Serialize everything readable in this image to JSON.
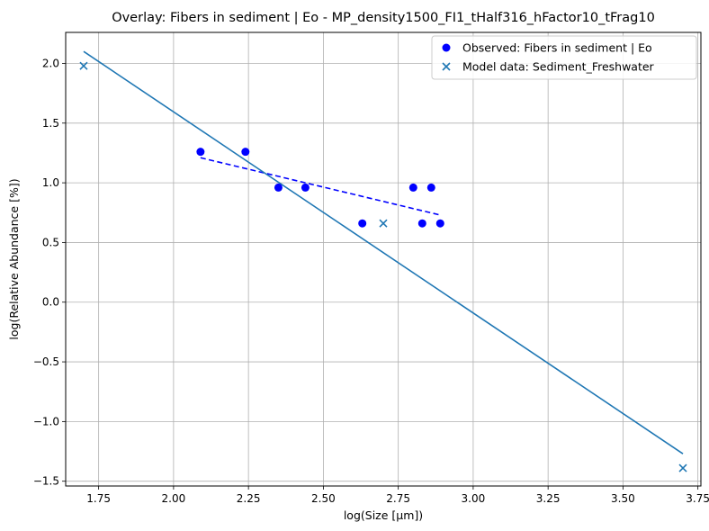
{
  "chart_data": {
    "type": "scatter",
    "title": "Overlay: Fibers in sediment | Eo - MP_density1500_FI1_tHalf316_hFactor10_tFrag10",
    "xlabel": "log(Size [µm])",
    "ylabel": "log(Relative Abundance [%])",
    "xlim": [
      1.64,
      3.76
    ],
    "ylim": [
      -1.54,
      2.26
    ],
    "xticks": [
      1.75,
      2.0,
      2.25,
      2.5,
      2.75,
      3.0,
      3.25,
      3.5,
      3.75
    ],
    "xtick_labels": [
      "1.75",
      "2.00",
      "2.25",
      "2.50",
      "2.75",
      "3.00",
      "3.25",
      "3.50",
      "3.75"
    ],
    "yticks": [
      -1.5,
      -1.0,
      -0.5,
      0.0,
      0.5,
      1.0,
      1.5,
      2.0
    ],
    "ytick_labels": [
      "−1.5",
      "−1.0",
      "−0.5",
      "0.0",
      "0.5",
      "1.0",
      "1.5",
      "2.0"
    ],
    "grid": true,
    "legend_position": "top-right",
    "series": [
      {
        "name": "Observed: Fibers in sediment | Eo",
        "kind": "scatter-circle",
        "color": "#0000ff",
        "points": [
          [
            2.09,
            1.26
          ],
          [
            2.24,
            1.26
          ],
          [
            2.35,
            0.96
          ],
          [
            2.44,
            0.96
          ],
          [
            2.63,
            0.66
          ],
          [
            2.8,
            0.96
          ],
          [
            2.83,
            0.66
          ],
          [
            2.86,
            0.96
          ],
          [
            2.89,
            0.66
          ]
        ]
      },
      {
        "name": "Model data: Sediment_Freshwater",
        "kind": "scatter-x",
        "color": "#1f77b4",
        "points": [
          [
            1.7,
            1.98
          ],
          [
            2.7,
            0.66
          ],
          [
            3.7,
            -1.39
          ]
        ]
      },
      {
        "kind": "line-dashed",
        "color": "#0000ff",
        "points": [
          [
            2.09,
            1.21
          ],
          [
            2.89,
            0.73
          ]
        ]
      },
      {
        "kind": "line",
        "color": "#1f77b4",
        "points": [
          [
            1.7,
            2.1
          ],
          [
            3.7,
            -1.27
          ]
        ]
      }
    ]
  }
}
